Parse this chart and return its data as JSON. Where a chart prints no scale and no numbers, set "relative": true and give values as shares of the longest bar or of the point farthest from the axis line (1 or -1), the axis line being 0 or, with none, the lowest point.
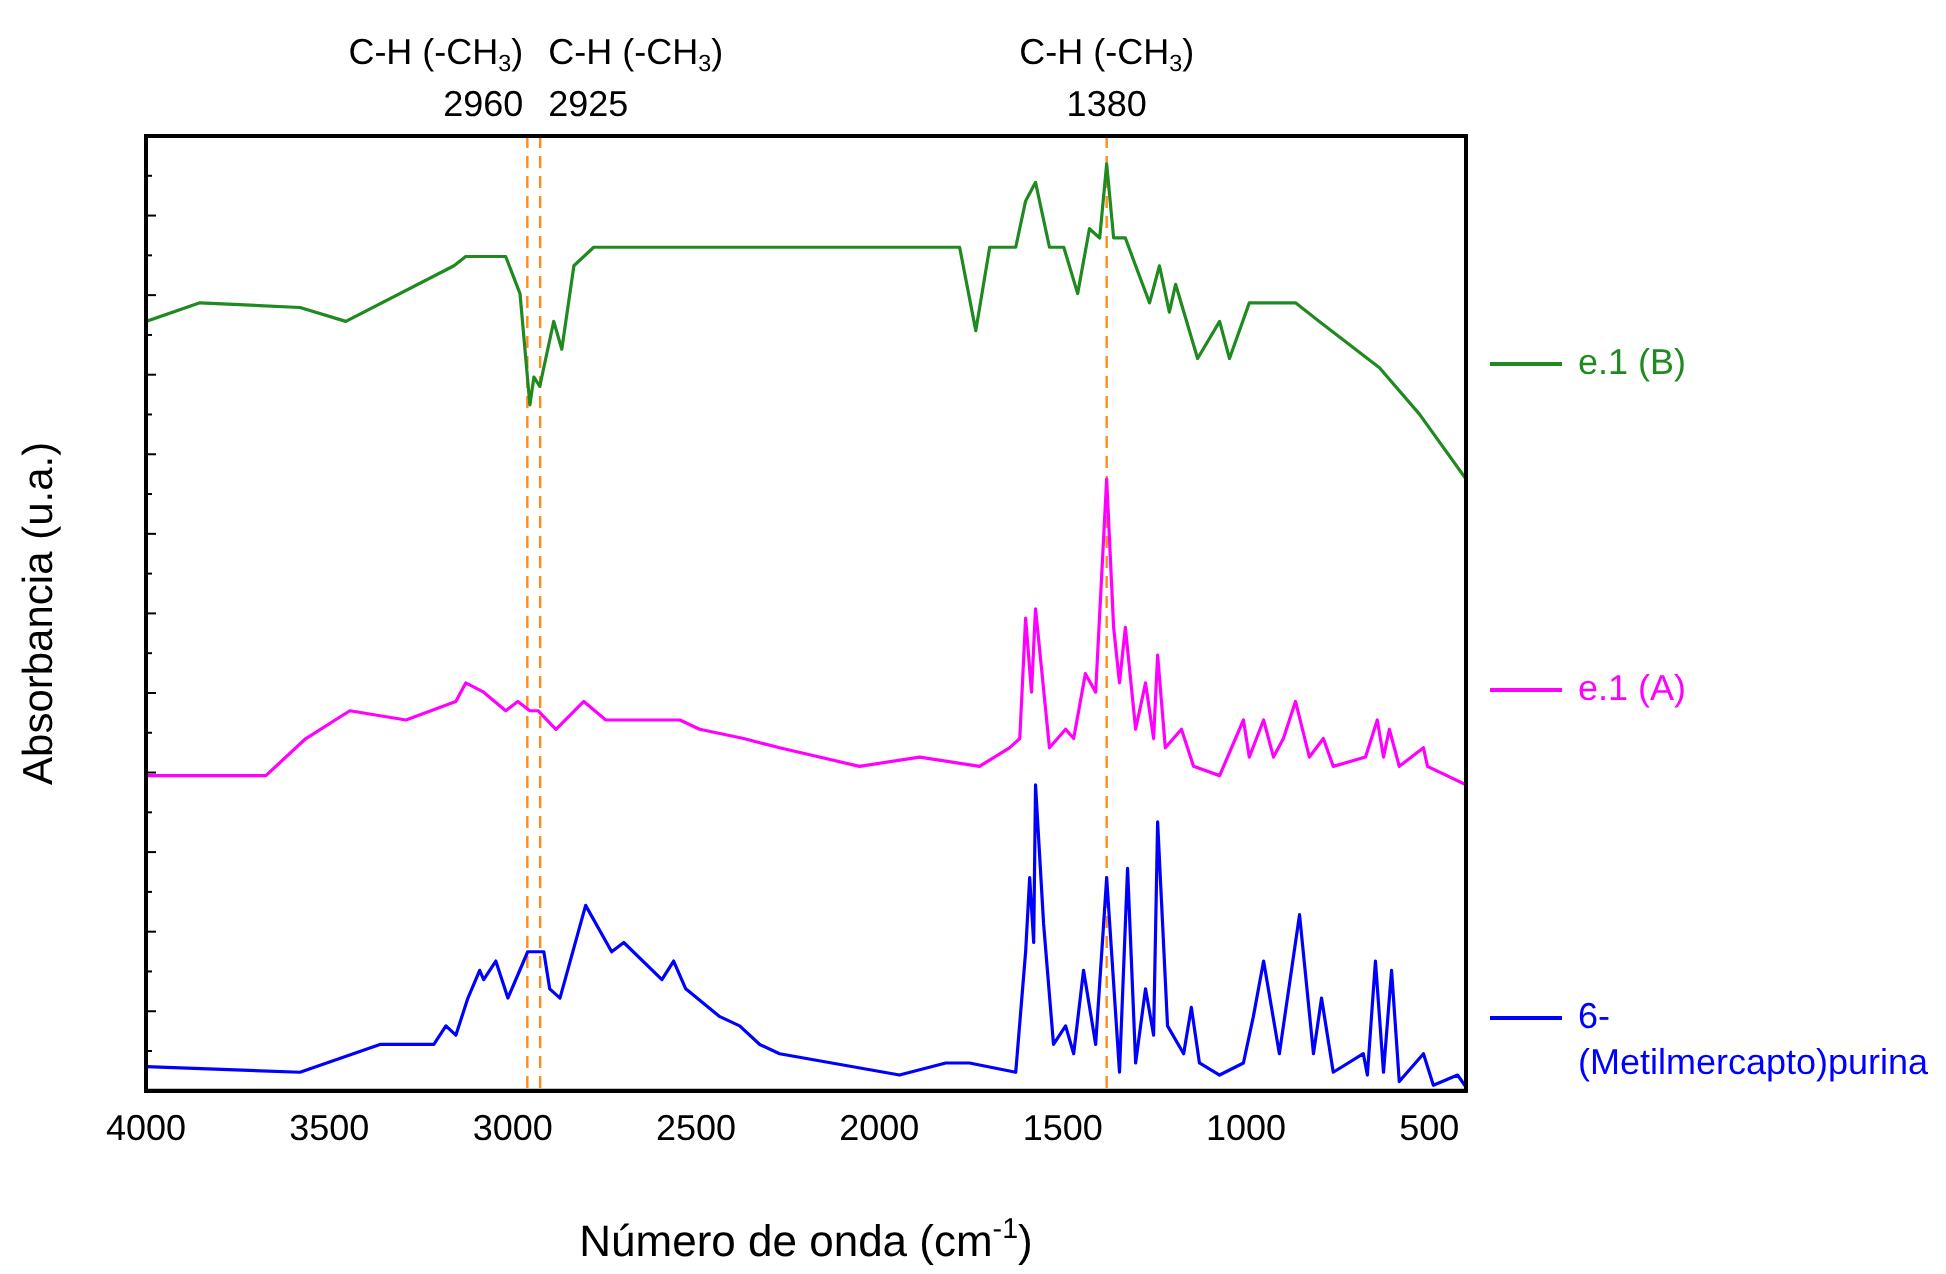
{
  "chart_data": {
    "type": "line",
    "relative": true,
    "xlabel": "Número de onda (cm$^{-1}$)",
    "ylabel": "Absorbancia (u.a.)",
    "xlim": [
      4000,
      400
    ],
    "xticks": [
      4000,
      3500,
      3000,
      2500,
      2000,
      1500,
      1000,
      500
    ],
    "tick_labels": "x",
    "legend": "right",
    "grid": false,
    "line_style": "solid",
    "marker": "none",
    "ref_lines": [
      {
        "axis": "x",
        "value": 2960,
        "label": "C-H (-CH$_{3}$)\n2960",
        "color": "#ff8c1a",
        "line_style": "dashed"
      },
      {
        "axis": "x",
        "value": 2925,
        "label": "C-H (-CH$_{3}$)\n2925",
        "color": "#ff8c1a",
        "line_style": "dashed"
      },
      {
        "axis": "x",
        "value": 1380,
        "label": "C-H (-CH$_{3}$)\n1380",
        "color": "#ff8c1a",
        "line_style": "dashed"
      }
    ],
    "series": [
      {
        "name": "e.1 (B)",
        "color": "#1f8a1f",
        "x": [
          4000,
          3853,
          3580,
          3455,
          3160,
          3128,
          3019,
          2980,
          2953,
          2942,
          2926,
          2888,
          2866,
          2833,
          2779,
          2272,
          1781,
          1737,
          1699,
          1628,
          1601,
          1574,
          1536,
          1497,
          1459,
          1427,
          1399,
          1380,
          1361,
          1329,
          1301,
          1263,
          1236,
          1209,
          1192,
          1132,
          1072,
          1045,
          991,
          920,
          865,
          800,
          636,
          527,
          400
        ],
        "values": [
          0.83,
          0.85,
          0.845,
          0.83,
          0.89,
          0.9,
          0.9,
          0.86,
          0.74,
          0.77,
          0.76,
          0.83,
          0.8,
          0.89,
          0.91,
          0.91,
          0.91,
          0.82,
          0.91,
          0.91,
          0.96,
          0.98,
          0.91,
          0.91,
          0.86,
          0.93,
          0.92,
          1.0,
          0.92,
          0.92,
          0.89,
          0.85,
          0.89,
          0.84,
          0.87,
          0.79,
          0.83,
          0.79,
          0.85,
          0.85,
          0.85,
          0.83,
          0.78,
          0.73,
          0.66
        ]
      },
      {
        "name": "e.1 (A)",
        "color": "#ff00ff",
        "x": [
          4000,
          3673,
          3564,
          3444,
          3291,
          3155,
          3128,
          3079,
          3019,
          2986,
          2953,
          2931,
          2882,
          2806,
          2746,
          2670,
          2637,
          2544,
          2490,
          2370,
          2272,
          2054,
          1890,
          1727,
          1645,
          1617,
          1601,
          1585,
          1574,
          1536,
          1492,
          1470,
          1438,
          1410,
          1380,
          1361,
          1345,
          1329,
          1301,
          1274,
          1252,
          1241,
          1220,
          1176,
          1143,
          1072,
          1007,
          991,
          952,
          925,
          898,
          865,
          827,
          789,
          762,
          674,
          642,
          625,
          609,
          582,
          516,
          505,
          400
        ],
        "values": [
          0.34,
          0.34,
          0.38,
          0.41,
          0.4,
          0.42,
          0.44,
          0.43,
          0.41,
          0.42,
          0.41,
          0.41,
          0.39,
          0.42,
          0.4,
          0.4,
          0.4,
          0.4,
          0.39,
          0.38,
          0.37,
          0.35,
          0.36,
          0.35,
          0.37,
          0.38,
          0.51,
          0.43,
          0.52,
          0.37,
          0.39,
          0.38,
          0.45,
          0.43,
          0.66,
          0.5,
          0.44,
          0.5,
          0.39,
          0.44,
          0.38,
          0.47,
          0.37,
          0.39,
          0.35,
          0.34,
          0.4,
          0.36,
          0.4,
          0.36,
          0.38,
          0.42,
          0.36,
          0.38,
          0.35,
          0.36,
          0.4,
          0.36,
          0.39,
          0.35,
          0.37,
          0.35,
          0.33
        ]
      },
      {
        "name": "6-(Metilmercapto)purina",
        "color": "#0000ff",
        "x": [
          4000,
          3580,
          3362,
          3215,
          3182,
          3155,
          3122,
          3090,
          3079,
          3046,
          3013,
          2959,
          2915,
          2899,
          2871,
          2801,
          2730,
          2697,
          2593,
          2561,
          2528,
          2435,
          2381,
          2326,
          2272,
          1945,
          1819,
          1754,
          1628,
          1601,
          1590,
          1579,
          1574,
          1552,
          1525,
          1492,
          1470,
          1443,
          1410,
          1380,
          1345,
          1323,
          1301,
          1274,
          1252,
          1241,
          1214,
          1170,
          1149,
          1127,
          1072,
          1007,
          980,
          952,
          909,
          854,
          816,
          794,
          762,
          680,
          669,
          647,
          625,
          603,
          582,
          516,
          489,
          423,
          400
        ],
        "values": [
          0.026,
          0.02,
          0.05,
          0.05,
          0.07,
          0.06,
          0.1,
          0.13,
          0.12,
          0.14,
          0.1,
          0.15,
          0.15,
          0.11,
          0.1,
          0.2,
          0.15,
          0.16,
          0.12,
          0.14,
          0.11,
          0.08,
          0.07,
          0.05,
          0.04,
          0.017,
          0.03,
          0.03,
          0.02,
          0.15,
          0.23,
          0.16,
          0.33,
          0.18,
          0.05,
          0.07,
          0.04,
          0.13,
          0.05,
          0.23,
          0.02,
          0.24,
          0.03,
          0.11,
          0.06,
          0.29,
          0.07,
          0.04,
          0.09,
          0.03,
          0.017,
          0.03,
          0.08,
          0.14,
          0.04,
          0.19,
          0.04,
          0.1,
          0.02,
          0.04,
          0.017,
          0.14,
          0.02,
          0.13,
          0.01,
          0.04,
          0.006,
          0.017,
          0.004
        ]
      }
    ]
  }
}
